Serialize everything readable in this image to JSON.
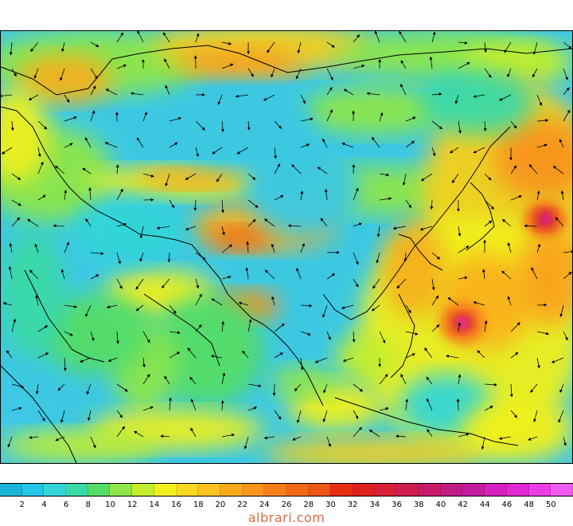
{
  "colorbar": {
    "colors": [
      "#1ab4d8",
      "#24c6e8",
      "#33d6d8",
      "#3bd9a6",
      "#55dd66",
      "#8ee64a",
      "#c3ee2d",
      "#f0f01e",
      "#f7d81c",
      "#f9c21c",
      "#f9ab1a",
      "#f9951a",
      "#f77f1a",
      "#f26a18",
      "#ee5516",
      "#e62e12",
      "#e0201e",
      "#d82036",
      "#d01c4e",
      "#c81868",
      "#c01c86",
      "#c31ca0",
      "#d620be",
      "#e228d4",
      "#ec3ce6",
      "#f05af0"
    ],
    "tick_labels": [
      "2",
      "4",
      "6",
      "8",
      "10",
      "12",
      "14",
      "16",
      "18",
      "20",
      "22",
      "24",
      "26",
      "28",
      "30",
      "32",
      "34",
      "36",
      "38",
      "40",
      "42",
      "44",
      "46",
      "48",
      "50"
    ]
  },
  "watermark": "albrari.com",
  "map_legend": {
    "quantity_scale": "2–50",
    "features": [
      "wind-speed shading",
      "wind-direction arrows",
      "coastlines"
    ]
  }
}
